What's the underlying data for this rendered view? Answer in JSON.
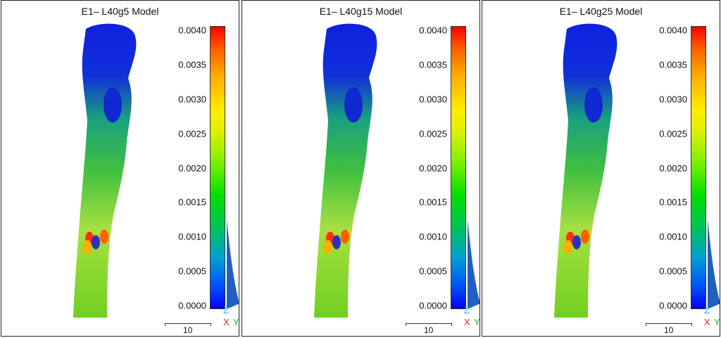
{
  "chart_data": [
    {
      "type": "heatmap",
      "title": "E1– L40g5 Model",
      "colorbar_ticks": [
        "0.0040",
        "0.0035",
        "0.0030",
        "0.0025",
        "0.0020",
        "0.0015",
        "0.0010",
        "0.0005",
        "0.0000"
      ],
      "colorbar_range": [
        0.0,
        0.004
      ],
      "scale_bar_label": "10",
      "axes_triad": {
        "z": "Z",
        "x": "X",
        "y": "Y"
      }
    },
    {
      "type": "heatmap",
      "title": "E1– L40g15 Model",
      "colorbar_ticks": [
        "0.0040",
        "0.0035",
        "0.0030",
        "0.0025",
        "0.0020",
        "0.0015",
        "0.0010",
        "0.0005",
        "0.0000"
      ],
      "colorbar_range": [
        0.0,
        0.004
      ],
      "scale_bar_label": "10",
      "axes_triad": {
        "z": "Z",
        "x": "X",
        "y": "Y"
      }
    },
    {
      "type": "heatmap",
      "title": "E1– L40g25 Model",
      "colorbar_ticks": [
        "0.0040",
        "0.0035",
        "0.0030",
        "0.0025",
        "0.0020",
        "0.0015",
        "0.0010",
        "0.0005",
        "0.0000"
      ],
      "colorbar_range": [
        0.0,
        0.004
      ],
      "scale_bar_label": "10",
      "axes_triad": {
        "z": "Z",
        "x": "X",
        "y": "Y"
      }
    }
  ],
  "colors": {
    "low": "#0000ff",
    "mid": "#00e000",
    "high": "#ff0000"
  }
}
